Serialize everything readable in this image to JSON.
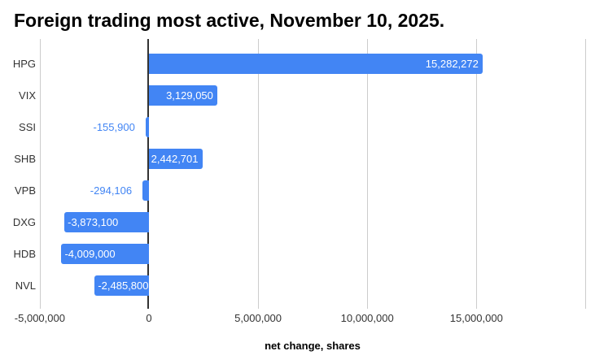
{
  "chart_data": {
    "type": "bar",
    "orientation": "horizontal",
    "title": "Foreign trading most active, November 10, 2025.",
    "xlabel": "net change, shares",
    "categories": [
      "HPG",
      "VIX",
      "SSI",
      "SHB",
      "VPB",
      "DXG",
      "HDB",
      "NVL"
    ],
    "values": [
      15282272,
      3129050,
      -155900,
      2442701,
      -294106,
      -3873100,
      -4009000,
      -2485800
    ],
    "value_labels": [
      "15,282,272",
      "3,129,050",
      "-155,900",
      "2,442,701",
      "-294,106",
      "-3,873,100",
      "-4,009,000",
      "-2,485,800"
    ],
    "label_placement": [
      "inside",
      "inside",
      "outside",
      "inside",
      "outside",
      "inside",
      "inside",
      "inside"
    ],
    "xlim": [
      -5000000,
      20000000
    ],
    "xticks": [
      {
        "value": -5000000,
        "label": "-5,000,000"
      },
      {
        "value": 0,
        "label": "0"
      },
      {
        "value": 5000000,
        "label": "5,000,000"
      },
      {
        "value": 10000000,
        "label": "10,000,000"
      },
      {
        "value": 15000000,
        "label": "15,000,000"
      },
      {
        "value": 20000000,
        "label": ""
      }
    ],
    "grid": true,
    "legend": "none",
    "colors": {
      "bar": "#4285f4",
      "annotation_inside": "#ffffff",
      "annotation_outside": "#4285f4",
      "gridline": "#cccccc",
      "zero_line": "#333333",
      "tick": "#cccccc",
      "axis_text": "#333333",
      "title_text": "#000000",
      "background": "#ffffff"
    }
  }
}
